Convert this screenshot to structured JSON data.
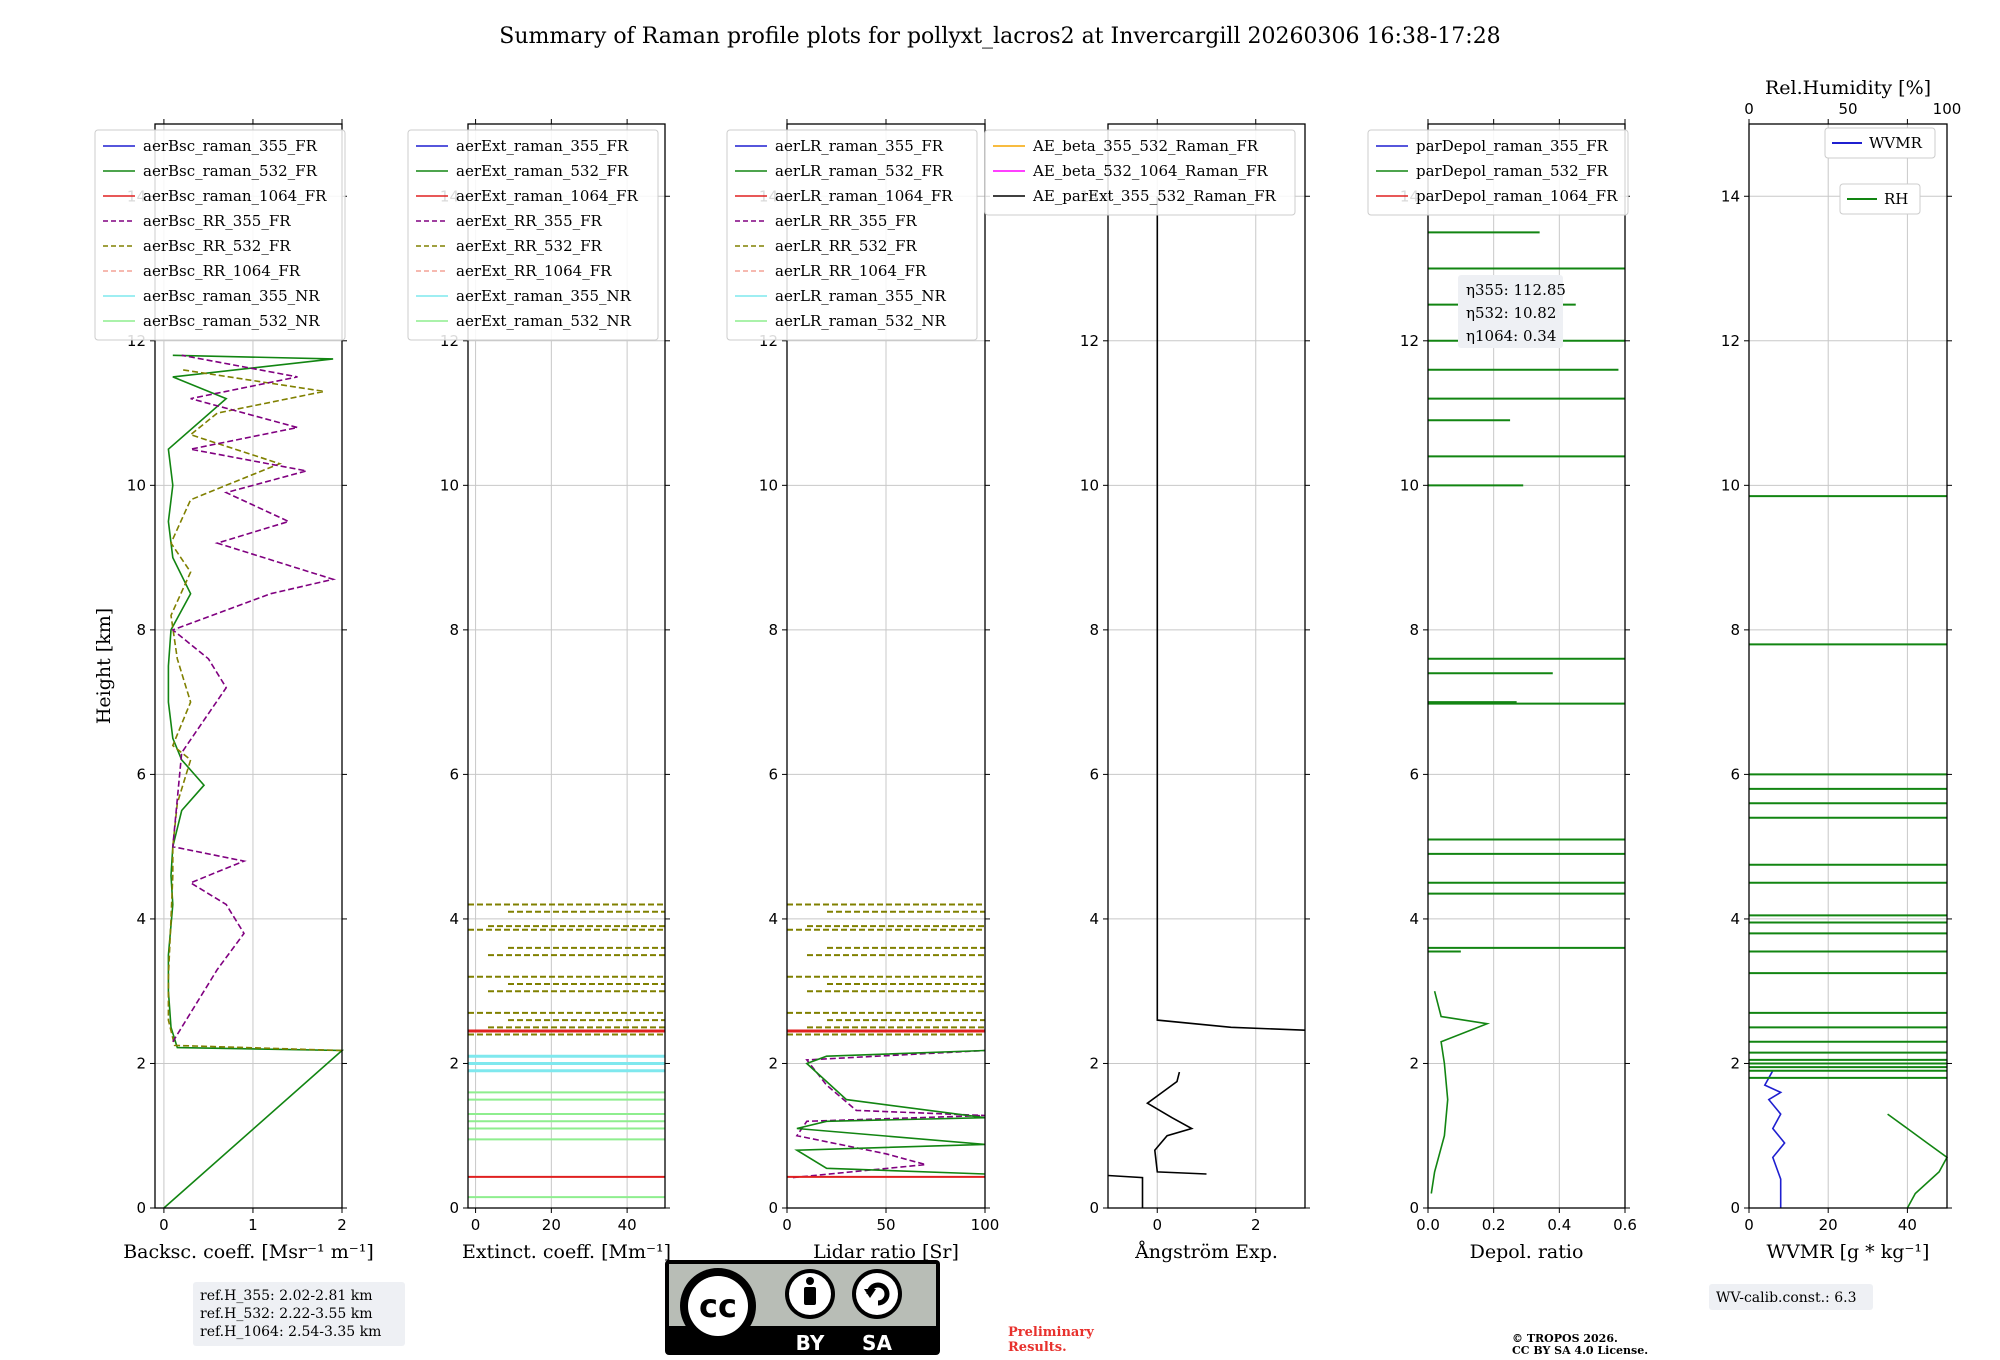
{
  "title": "Summary of Raman profile plots for pollyxt_lacros2 at Invercargill 20260306 16:38-17:28",
  "colors": {
    "c355": "#1f1fd0",
    "c532": "#128512",
    "c1064": "#e02020",
    "rr355": "#800080",
    "rr532": "#808000",
    "rr1064": "#f4a296",
    "nr355": "#7fe8ee",
    "nr532": "#8eee8e",
    "ae1": "#f5a500",
    "ae2": "#ff00ff",
    "ae3": "#000000",
    "rh": "#128512",
    "wvmr": "#1f1fd0"
  },
  "chart_data": [
    {
      "type": "line",
      "name": "backscatter",
      "xlabel": "Backsc. coeff. [Msr⁻¹ m⁻¹]",
      "ylabel": "Height [km]",
      "xlim": [
        -0.1,
        2
      ],
      "ylim": [
        0,
        15
      ],
      "xticks": [
        "0",
        "1",
        "2"
      ],
      "yticks": [
        "0",
        "2",
        "4",
        "6",
        "8",
        "10",
        "12",
        "14"
      ],
      "legend": [
        "aerBsc_raman_355_FR",
        "aerBsc_raman_532_FR",
        "aerBsc_raman_1064_FR",
        "aerBsc_RR_355_FR",
        "aerBsc_RR_532_FR",
        "aerBsc_RR_1064_FR",
        "aerBsc_raman_355_NR",
        "aerBsc_raman_532_NR"
      ],
      "series": [
        {
          "name": "aerBsc_raman_532_FR",
          "color": "c532",
          "dash": false,
          "points": [
            [
              0,
              0
            ],
            [
              2,
              2.18
            ],
            [
              0.15,
              2.22
            ],
            [
              0.08,
              2.5
            ],
            [
              0.05,
              3
            ],
            [
              0.05,
              3.5
            ],
            [
              0.1,
              4.2
            ],
            [
              0.08,
              4.6
            ],
            [
              0.1,
              5
            ],
            [
              0.2,
              5.5
            ],
            [
              0.45,
              5.85
            ],
            [
              0.2,
              6.2
            ],
            [
              0.1,
              6.5
            ],
            [
              0.05,
              7
            ],
            [
              0.05,
              7.5
            ],
            [
              0.08,
              8
            ],
            [
              0.3,
              8.5
            ],
            [
              0.1,
              9
            ],
            [
              0.05,
              9.5
            ],
            [
              0.1,
              10
            ],
            [
              0.05,
              10.5
            ],
            [
              0.7,
              11.2
            ],
            [
              0.1,
              11.5
            ],
            [
              1.9,
              11.75
            ],
            [
              0.1,
              11.8
            ]
          ]
        },
        {
          "name": "aerBsc_RR_532_FR",
          "color": "rr532",
          "dash": true,
          "points": [
            [
              2,
              2.18
            ],
            [
              0.12,
              2.25
            ],
            [
              0.05,
              2.6
            ],
            [
              0.05,
              3.2
            ],
            [
              0.08,
              4
            ],
            [
              0.1,
              4.6
            ],
            [
              0.1,
              5
            ],
            [
              0.15,
              5.6
            ],
            [
              0.3,
              6.2
            ],
            [
              0.1,
              6.4
            ],
            [
              0.3,
              7
            ],
            [
              0.15,
              7.6
            ],
            [
              0.08,
              8.2
            ],
            [
              0.3,
              8.8
            ],
            [
              0.08,
              9.2
            ],
            [
              0.3,
              9.8
            ],
            [
              0.7,
              10
            ],
            [
              1.3,
              10.3
            ],
            [
              0.3,
              10.7
            ],
            [
              0.6,
              11
            ],
            [
              1.8,
              11.3
            ],
            [
              0.2,
              11.6
            ]
          ]
        },
        {
          "name": "aerBsc_RR_355_FR",
          "color": "rr355",
          "dash": true,
          "points": [
            [
              0.1,
              2.3
            ],
            [
              0.6,
              3.3
            ],
            [
              0.9,
              3.8
            ],
            [
              0.7,
              4.2
            ],
            [
              0.3,
              4.5
            ],
            [
              0.9,
              4.8
            ],
            [
              0.1,
              5.0
            ],
            [
              0.2,
              6.3
            ],
            [
              0.7,
              7.2
            ],
            [
              0.5,
              7.6
            ],
            [
              0.1,
              8.0
            ],
            [
              1.2,
              8.5
            ],
            [
              1.9,
              8.7
            ],
            [
              0.6,
              9.2
            ],
            [
              1.4,
              9.5
            ],
            [
              0.7,
              9.9
            ],
            [
              1.6,
              10.2
            ],
            [
              0.3,
              10.5
            ],
            [
              1.5,
              10.8
            ],
            [
              0.3,
              11.2
            ],
            [
              1.5,
              11.5
            ],
            [
              0.2,
              11.8
            ]
          ]
        }
      ]
    },
    {
      "type": "line",
      "name": "extinction",
      "xlabel": "Extinct. coeff. [Mm⁻¹]",
      "xlim": [
        -2,
        50
      ],
      "ylim": [
        0,
        15
      ],
      "xticks": [
        "0",
        "20",
        "40"
      ],
      "yticks": [
        "0",
        "2",
        "4",
        "6",
        "8",
        "10",
        "12",
        "14"
      ],
      "legend": [
        "aerExt_raman_355_FR",
        "aerExt_raman_532_FR",
        "aerExt_raman_1064_FR",
        "aerExt_RR_355_FR",
        "aerExt_RR_532_FR",
        "aerExt_RR_1064_FR",
        "aerExt_raman_355_NR",
        "aerExt_raman_532_NR"
      ]
    },
    {
      "type": "line",
      "name": "lidar_ratio",
      "xlabel": "Lidar ratio [Sr]",
      "xlim": [
        0,
        100
      ],
      "ylim": [
        0,
        15
      ],
      "xticks": [
        "0",
        "50",
        "100"
      ],
      "yticks": [
        "0",
        "2",
        "4",
        "6",
        "8",
        "10",
        "12",
        "14"
      ],
      "legend": [
        "aerLR_raman_355_FR",
        "aerLR_raman_532_FR",
        "aerLR_raman_1064_FR",
        "aerLR_RR_355_FR",
        "aerLR_RR_532_FR",
        "aerLR_RR_1064_FR",
        "aerLR_raman_355_NR",
        "aerLR_raman_532_NR"
      ],
      "series": [
        {
          "name": "aerLR_RR_355_FR",
          "color": "rr355",
          "dash": true,
          "points": [
            [
              3,
              0.42
            ],
            [
              70,
              0.6
            ],
            [
              50,
              0.75
            ],
            [
              5,
              1.0
            ],
            [
              10,
              1.2
            ],
            [
              100,
              1.28
            ],
            [
              35,
              1.35
            ],
            [
              20,
              1.7
            ],
            [
              10,
              2.05
            ],
            [
              100,
              2.18
            ]
          ]
        },
        {
          "name": "aerLR_raman_532_FR",
          "color": "c532",
          "dash": false,
          "points": [
            [
              100,
              0.47
            ],
            [
              20,
              0.55
            ],
            [
              5,
              0.8
            ],
            [
              100,
              0.88
            ],
            [
              5,
              1.1
            ],
            [
              20,
              1.2
            ],
            [
              100,
              1.25
            ],
            [
              30,
              1.5
            ],
            [
              10,
              2.0
            ],
            [
              20,
              2.1
            ],
            [
              100,
              2.18
            ]
          ]
        }
      ]
    },
    {
      "type": "line",
      "name": "angstrom",
      "xlabel": "Ångström Exp.",
      "xlim": [
        -1,
        3
      ],
      "ylim": [
        0,
        15
      ],
      "xticks": [
        "0",
        "2"
      ],
      "yticks": [
        "0",
        "2",
        "4",
        "6",
        "8",
        "10",
        "12",
        "14"
      ],
      "legend": [
        "AE_beta_355_532_Raman_FR",
        "AE_beta_532_1064_Raman_FR",
        "AE_parExt_355_532_Raman_FR"
      ],
      "series": [
        {
          "name": "AE_parExt_355_532_Raman_FR",
          "color": "ae3",
          "dash": false,
          "points": [
            [
              -0.3,
              0
            ],
            [
              -0.3,
              0.42
            ],
            [
              -1,
              0.45
            ]
          ]
        },
        {
          "name": "AE_parExt_355_532_Raman_FR_2",
          "color": "ae3",
          "dash": false,
          "points": [
            [
              1.0,
              0.47
            ],
            [
              0,
              0.5
            ],
            [
              -0.05,
              0.8
            ],
            [
              0.2,
              1.0
            ],
            [
              0.7,
              1.1
            ],
            [
              0.3,
              1.25
            ],
            [
              -0.2,
              1.45
            ],
            [
              0.1,
              1.6
            ],
            [
              0.4,
              1.75
            ],
            [
              0.45,
              1.88
            ]
          ]
        },
        {
          "name": "AE_parExt_355_532_Raman_FR_3",
          "color": "ae3",
          "dash": false,
          "points": [
            [
              3,
              2.46
            ],
            [
              1.5,
              2.5
            ],
            [
              0,
              2.6
            ],
            [
              0,
              14
            ]
          ]
        }
      ]
    },
    {
      "type": "line",
      "name": "depol",
      "xlabel": "Depol. ratio",
      "xlim": [
        0,
        0.6
      ],
      "ylim": [
        0,
        15
      ],
      "xticks": [
        "0.0",
        "0.2",
        "0.4",
        "0.6"
      ],
      "yticks": [
        "0",
        "2",
        "4",
        "6",
        "8",
        "10",
        "12",
        "14"
      ],
      "legend": [
        "parDepol_raman_355_FR",
        "parDepol_raman_532_FR",
        "parDepol_raman_1064_FR"
      ],
      "annotation": [
        "η355: 112.85",
        "η532: 10.82",
        "η1064: 0.34"
      ],
      "series": [
        {
          "name": "parDepol_raman_532_FR",
          "color": "c532",
          "dash": false,
          "points": [
            [
              0.01,
              0.2
            ],
            [
              0.02,
              0.5
            ],
            [
              0.05,
              1.0
            ],
            [
              0.06,
              1.5
            ],
            [
              0.05,
              2.0
            ],
            [
              0.04,
              2.3
            ],
            [
              0.18,
              2.55
            ],
            [
              0.04,
              2.65
            ],
            [
              0.02,
              3.0
            ]
          ]
        }
      ]
    },
    {
      "type": "line",
      "name": "wvmr",
      "xlabel": "WVMR [g * kg⁻¹]",
      "xlim": [
        0,
        50
      ],
      "ylim": [
        0,
        15
      ],
      "xticks": [
        "0",
        "20",
        "40"
      ],
      "yticks": [
        "0",
        "2",
        "4",
        "6",
        "8",
        "10",
        "12",
        "14"
      ],
      "top_axis_label": "Rel.Humidity [%]",
      "top_ticks": [
        "0",
        "50",
        "100"
      ],
      "legend": [
        "WVMR",
        "RH"
      ],
      "series": [
        {
          "name": "WVMR",
          "color": "wvmr",
          "dash": false,
          "points": [
            [
              8,
              0
            ],
            [
              8,
              0.4
            ],
            [
              6,
              0.7
            ],
            [
              9,
              0.9
            ],
            [
              6,
              1.1
            ],
            [
              8,
              1.3
            ],
            [
              5,
              1.5
            ],
            [
              8,
              1.6
            ],
            [
              4,
              1.7
            ],
            [
              6,
              1.9
            ]
          ]
        },
        {
          "name": "RH",
          "color": "rh",
          "dash": false,
          "points": [
            [
              40,
              0
            ],
            [
              42,
              0.2
            ],
            [
              48,
              0.5
            ],
            [
              50,
              0.7
            ],
            [
              45,
              0.9
            ],
            [
              40,
              1.1
            ],
            [
              35,
              1.3
            ]
          ]
        }
      ]
    }
  ],
  "ref_box": [
    "ref.H_355: 2.02-2.81 km",
    "ref.H_532: 2.22-3.55 km",
    "ref.H_1064: 2.54-3.35 km"
  ],
  "wv_calib": "WV-calib.const.: 6.3",
  "license": {
    "cc": "cc",
    "by": "BY",
    "sa": "SA"
  },
  "preliminary": [
    "Preliminary",
    "Results."
  ],
  "copyright": [
    "© TROPOS 2026.",
    "CC BY SA 4.0 License."
  ]
}
